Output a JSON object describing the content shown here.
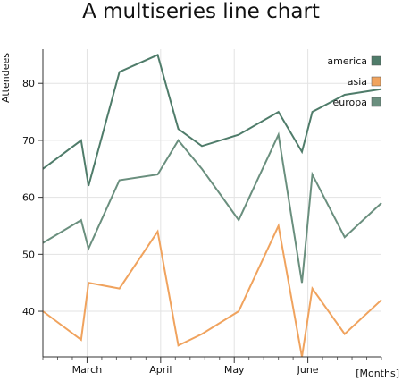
{
  "chart_data": {
    "type": "line",
    "title": "A multiseries line chart",
    "ylabel": "Attendees",
    "xlabel": "[Months]",
    "xlim": [
      0,
      23
    ],
    "ylim": [
      32,
      86
    ],
    "x_ticks": [
      {
        "x": 3,
        "label": "March"
      },
      {
        "x": 8,
        "label": "April"
      },
      {
        "x": 13,
        "label": "May"
      },
      {
        "x": 18,
        "label": "June"
      }
    ],
    "y_ticks": [
      40,
      50,
      60,
      70,
      80
    ],
    "grid": true,
    "legend_position": "top-right",
    "series": [
      {
        "name": "america",
        "color": "#4f7c6a",
        "x": [
          0,
          2.6,
          3.1,
          5.2,
          7.8,
          9.2,
          10.8,
          13.3,
          16,
          17.6,
          18.3,
          20.5,
          23
        ],
        "values": [
          65,
          70,
          62,
          82,
          85,
          72,
          69,
          71,
          75,
          68,
          75,
          78,
          79
        ]
      },
      {
        "name": "asia",
        "color": "#f0a35e",
        "x": [
          0,
          2.6,
          3.1,
          5.2,
          7.8,
          9.2,
          10.8,
          13.3,
          16,
          17.6,
          18.3,
          20.5,
          23
        ],
        "values": [
          40,
          35,
          45,
          44,
          54,
          34,
          36,
          40,
          55,
          32,
          44,
          36,
          42
        ]
      },
      {
        "name": "europa",
        "color": "#6a8f7e",
        "x": [
          0,
          2.6,
          3.1,
          5.2,
          7.8,
          9.2,
          10.8,
          13.3,
          16,
          17.6,
          18.3,
          20.5,
          23
        ],
        "values": [
          52,
          56,
          51,
          63,
          64,
          70,
          65,
          56,
          71,
          45,
          64,
          53,
          59
        ]
      }
    ]
  }
}
